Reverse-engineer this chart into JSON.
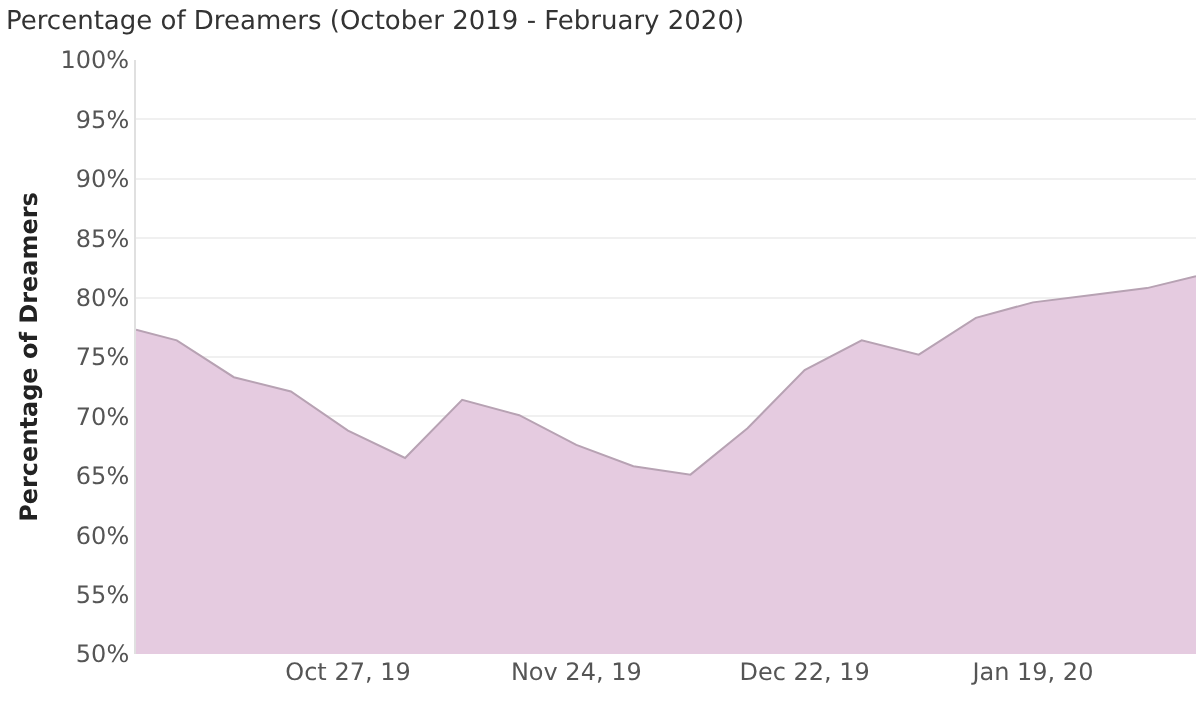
{
  "chart_data": {
    "type": "area",
    "title": "Percentage of Dreamers (October 2019 - February 2020)",
    "ylabel": "Percentage of Dreamers",
    "x": [
      "2019-10-01",
      "2019-10-06",
      "2019-10-13",
      "2019-10-20",
      "2019-10-27",
      "2019-11-03",
      "2019-11-10",
      "2019-11-17",
      "2019-11-24",
      "2019-12-01",
      "2019-12-08",
      "2019-12-15",
      "2019-12-22",
      "2019-12-29",
      "2020-01-05",
      "2020-01-12",
      "2020-01-19",
      "2020-01-26",
      "2020-02-02",
      "2020-02-08"
    ],
    "series": [
      {
        "color": "#e5cbe0",
        "values": [
          77.3,
          76.4,
          73.3,
          72.1,
          68.8,
          66.5,
          71.4,
          70.1,
          67.6,
          65.8,
          65.1,
          69.0,
          73.9,
          76.4,
          75.2,
          78.3,
          79.6,
          80.2,
          80.8,
          81.8
        ]
      }
    ],
    "xlim": [
      "2019-10-01",
      "2020-02-08"
    ],
    "xticks": [
      {
        "value": "2019-10-27",
        "label": "Oct 27, 19"
      },
      {
        "value": "2019-11-24",
        "label": "Nov 24, 19"
      },
      {
        "value": "2019-12-22",
        "label": "Dec 22, 19"
      },
      {
        "value": "2020-01-19",
        "label": "Jan 19, 20"
      }
    ],
    "ylim": [
      50,
      100
    ],
    "yticks": [
      {
        "value": 50,
        "label": "50%"
      },
      {
        "value": 55,
        "label": "55%"
      },
      {
        "value": 60,
        "label": "60%"
      },
      {
        "value": 65,
        "label": "65%"
      },
      {
        "value": 70,
        "label": "70%"
      },
      {
        "value": 75,
        "label": "75%"
      },
      {
        "value": 80,
        "label": "80%"
      },
      {
        "value": 85,
        "label": "85%"
      },
      {
        "value": 90,
        "label": "90%"
      },
      {
        "value": 95,
        "label": "95%"
      },
      {
        "value": 100,
        "label": "100%"
      }
    ],
    "grid": "y"
  }
}
